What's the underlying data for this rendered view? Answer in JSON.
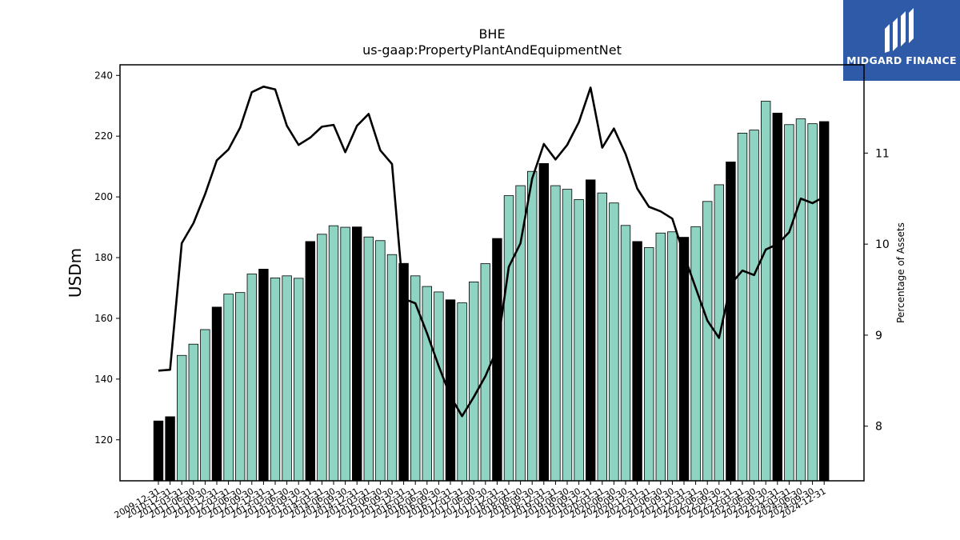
{
  "brand": {
    "name": "MIDGARD FINANCE",
    "bg": "#2e5aa8"
  },
  "chart_data": {
    "type": "bar",
    "title": "BHE",
    "subtitle": "us-gaap:PropertyPlantAndEquipmentNet",
    "ylabel": "USDm",
    "y2label": "Percentage of Assets",
    "ylim": [
      106.5,
      243.5
    ],
    "y2lim": [
      7.4,
      11.97
    ],
    "yticks": [
      120,
      140,
      160,
      180,
      200,
      220,
      240
    ],
    "y2ticks": [
      8,
      9,
      10,
      11
    ],
    "colors": {
      "quarter_bar": "#8fd3c2",
      "annual_bar": "#000000",
      "line": "#000000"
    },
    "categories": [
      "2009-12-31",
      "2010-12-31",
      "2011-03-31",
      "2011-06-30",
      "2011-09-30",
      "2011-12-31",
      "2012-03-31",
      "2012-06-30",
      "2012-09-30",
      "2012-12-31",
      "2013-03-31",
      "2013-06-30",
      "2013-09-30",
      "2013-12-31",
      "2014-03-31",
      "2014-06-30",
      "2014-09-30",
      "2014-12-31",
      "2015-03-31",
      "2015-06-30",
      "2015-09-30",
      "2015-12-31",
      "2016-03-31",
      "2016-06-30",
      "2016-09-30",
      "2016-12-31",
      "2017-03-31",
      "2017-06-30",
      "2017-09-30",
      "2017-12-31",
      "2018-03-31",
      "2018-06-30",
      "2018-09-30",
      "2018-12-31",
      "2019-03-31",
      "2019-06-30",
      "2019-09-30",
      "2019-12-31",
      "2020-03-31",
      "2020-06-30",
      "2020-09-30",
      "2020-12-31",
      "2021-03-31",
      "2021-06-30",
      "2021-09-30",
      "2021-12-31",
      "2022-03-31",
      "2022-06-30",
      "2022-09-30",
      "2022-12-31",
      "2023-03-31",
      "2023-06-30",
      "2023-09-30",
      "2023-12-31",
      "2024-03-31",
      "2024-06-30",
      "2024-09-30",
      "2024-12-31"
    ],
    "series": [
      {
        "kind": "bar",
        "axis": "left",
        "values": [
          126.2,
          127.6,
          147.8,
          151.5,
          156.3,
          163.7,
          168.0,
          168.5,
          174.6,
          176.2,
          173.3,
          174.0,
          173.2,
          185.3,
          187.7,
          190.5,
          190.0,
          190.1,
          186.8,
          185.6,
          181.0,
          178.1,
          174.0,
          170.5,
          168.7,
          166.1,
          165.1,
          172.0,
          178.0,
          186.3,
          200.4,
          203.7,
          208.4,
          211.0,
          203.7,
          202.5,
          199.1,
          205.6,
          201.3,
          198.0,
          190.6,
          185.3,
          183.3,
          188.1,
          188.5,
          186.7,
          190.2,
          198.5,
          204.0,
          211.5,
          221.0,
          222.0,
          231.5,
          227.6,
          223.8,
          225.7,
          224.1,
          224.8
        ],
        "annual": [
          true,
          true,
          false,
          false,
          false,
          true,
          false,
          false,
          false,
          true,
          false,
          false,
          false,
          true,
          false,
          false,
          false,
          true,
          false,
          false,
          false,
          true,
          false,
          false,
          false,
          true,
          false,
          false,
          false,
          true,
          false,
          false,
          false,
          true,
          false,
          false,
          false,
          true,
          false,
          false,
          false,
          true,
          false,
          false,
          false,
          true,
          false,
          false,
          false,
          true,
          false,
          false,
          false,
          true,
          false,
          false,
          false,
          true
        ]
      },
      {
        "kind": "line",
        "axis": "right",
        "values": [
          8.61,
          8.62,
          10.01,
          10.23,
          10.55,
          10.92,
          11.04,
          11.28,
          11.67,
          11.73,
          11.7,
          11.3,
          11.09,
          11.17,
          11.29,
          11.31,
          11.01,
          11.3,
          11.43,
          11.03,
          10.88,
          9.4,
          9.35,
          9.02,
          8.66,
          8.33,
          8.11,
          8.32,
          8.55,
          8.85,
          9.75,
          10.01,
          10.72,
          11.1,
          10.93,
          11.09,
          11.34,
          11.72,
          11.06,
          11.27,
          10.99,
          10.61,
          10.41,
          10.36,
          10.28,
          9.88,
          9.52,
          9.16,
          8.97,
          9.56,
          9.71,
          9.66,
          9.94,
          10.0,
          10.13,
          10.5,
          10.45,
          10.52
        ]
      }
    ]
  }
}
